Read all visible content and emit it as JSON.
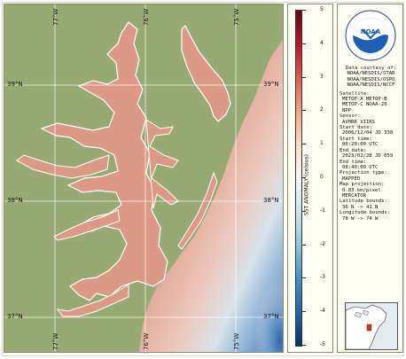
{
  "map": {
    "lat_labels": [
      "39°N",
      "38°N",
      "37°N"
    ],
    "lat_labels_right": [
      "39°N",
      "38°N",
      "37°N"
    ],
    "lon_labels_top": [
      "77°W",
      "76°W",
      "75°W"
    ],
    "lon_labels_bottom": [
      "77°W",
      "76°W",
      "75°W"
    ]
  },
  "colorbar": {
    "title": "SST ANOMALY (celsius)",
    "ticks": [
      "5",
      "4",
      "3",
      "2",
      "1",
      "0",
      "-1",
      "-2",
      "-3",
      "-4",
      "-5"
    ],
    "colors": [
      "#5a0d14",
      "#b2182b",
      "#d6604d",
      "#f4a582",
      "#fddbc7",
      "#f7f7f7",
      "#d1e5f0",
      "#92c5de",
      "#4393c3",
      "#2166ac",
      "#0b2f6b"
    ]
  },
  "metadata": {
    "courtesy_title": "Data courtesy of:",
    "courtesy_lines": [
      "NOAA/NESDIS/STAR",
      "NOAA/NESDIS/OSPO",
      "NOAA/NESDIS/NCCF"
    ],
    "satellite_label": "Satellite:",
    "satellite_lines": [
      "METOP-A METOP-B",
      "METOP-C NOAA-20",
      "NPP"
    ],
    "sensor_label": "Sensor:",
    "sensor_value": "AVHRR VIIRS",
    "start_date_label": "Start date:",
    "start_date_value": "2006/12/04 JD 338",
    "start_time_label": "Start time:",
    "start_time_value": "00:20:00 UTC",
    "end_date_label": "End date:",
    "end_date_value": "2023/02/28 JD 059",
    "end_time_label": "End time:",
    "end_time_value": "08:40:00 UTC",
    "projection_type_label": "Projection type:",
    "projection_type_value": "MAPPED",
    "map_projection_label": "Map projection:",
    "map_projection_lines": [
      "0.83 km/pixel",
      "MERCATOR"
    ],
    "lat_bounds_label": "Latitude bounds:",
    "lat_bounds_value": "36 N -> 41 N",
    "lon_bounds_label": "Longitude bounds:",
    "lon_bounds_value": "78 W -> 74 W"
  },
  "logo": {
    "text": "NOAA",
    "ring_top": "NATIONAL OCEANIC AND ATMOSPHERIC ADMINISTRATION",
    "ring_bottom": "U.S. DEPARTMENT OF COMMERCE"
  },
  "colors": {
    "land": "#97aa72",
    "water_warm": "#dc9a86",
    "water_cold": "#4479b8",
    "coast": "#ffffff"
  }
}
